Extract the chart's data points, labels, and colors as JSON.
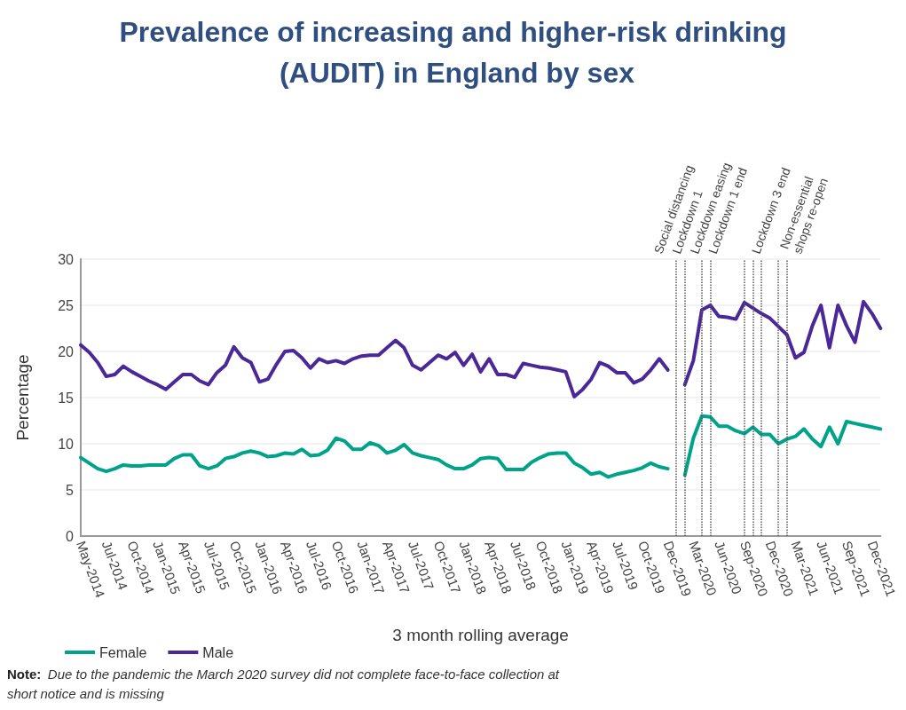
{
  "chart_data": {
    "type": "line",
    "title": "Prevalence of increasing and higher-risk drinking (AUDIT) in England by sex",
    "xlabel": "3 month rolling average",
    "ylabel": "Percentage",
    "categories": [
      "May-2014",
      null,
      null,
      "Jul-2014",
      null,
      null,
      "Oct-2014",
      null,
      null,
      "Jan-2015",
      null,
      null,
      "Apr-2015",
      null,
      null,
      "Jul-2015",
      null,
      null,
      "Oct-2015",
      null,
      null,
      "Jan-2016",
      null,
      null,
      "Apr-2016",
      null,
      null,
      "Jul-2016",
      null,
      null,
      "Oct-2016",
      null,
      null,
      "Jan-2017",
      null,
      null,
      "Apr-2017",
      null,
      null,
      "Jul-2017",
      null,
      null,
      "Oct-2017",
      null,
      null,
      "Jan-2018",
      null,
      null,
      "Apr-2018",
      null,
      null,
      "Jul-2018",
      null,
      null,
      "Oct-2018",
      null,
      null,
      "Jan-2019",
      null,
      null,
      "Apr-2019",
      null,
      null,
      "Jul-2019",
      null,
      null,
      "Oct-2019",
      null,
      null,
      "Dec-2019",
      null,
      null,
      "Mar-2020",
      null,
      null,
      "Jun-2020",
      null,
      null,
      "Sep-2020",
      null,
      null,
      "Dec-2020",
      null,
      null,
      "Mar-2021",
      null,
      null,
      "Jun-2021",
      null,
      null,
      "Sep-2021",
      null,
      null,
      "Dec-2021",
      null
    ],
    "series": [
      {
        "name": "Female",
        "color": "#00a38a",
        "values": [
          8.5,
          7.9,
          7.3,
          7.0,
          7.3,
          7.7,
          7.6,
          7.6,
          7.7,
          7.7,
          7.7,
          8.4,
          8.8,
          8.8,
          7.6,
          7.3,
          7.6,
          8.4,
          8.6,
          9.0,
          9.2,
          9.0,
          8.6,
          8.7,
          9.0,
          8.9,
          9.4,
          8.7,
          8.8,
          9.3,
          10.6,
          10.3,
          9.4,
          9.4,
          10.1,
          9.8,
          9.0,
          9.3,
          9.9,
          9.0,
          8.7,
          8.5,
          8.3,
          7.7,
          7.3,
          7.3,
          7.7,
          8.4,
          8.5,
          8.4,
          7.2,
          7.2,
          7.2,
          8.0,
          8.5,
          8.9,
          9.0,
          9.0,
          7.9,
          7.4,
          6.7,
          6.9,
          6.4,
          6.7,
          6.9,
          7.1,
          7.4,
          7.9,
          7.5,
          7.3,
          null,
          6.6,
          10.6,
          13.0,
          12.9,
          11.9,
          11.9,
          11.4,
          11.1,
          11.8,
          11.0,
          11.0,
          10.0,
          10.5,
          10.8,
          11.6,
          10.5,
          9.7,
          11.8,
          10.0,
          12.4,
          12.2,
          12.0,
          11.8,
          11.6
        ]
      },
      {
        "name": "Male",
        "color": "#4b2897",
        "values": [
          20.7,
          19.9,
          18.8,
          17.3,
          17.5,
          18.4,
          17.8,
          17.3,
          16.8,
          16.4,
          15.9,
          16.7,
          17.5,
          17.5,
          16.8,
          16.4,
          17.7,
          18.5,
          20.5,
          19.3,
          18.8,
          16.7,
          17.0,
          18.6,
          20.0,
          20.1,
          19.3,
          18.2,
          19.2,
          18.8,
          19.0,
          18.7,
          19.2,
          19.5,
          19.6,
          19.6,
          20.4,
          21.2,
          20.4,
          18.5,
          18.0,
          18.8,
          19.6,
          19.2,
          19.9,
          18.5,
          19.7,
          17.8,
          19.2,
          17.5,
          17.5,
          17.2,
          18.7,
          18.5,
          18.3,
          18.2,
          18.0,
          17.8,
          15.1,
          15.9,
          17.0,
          18.8,
          18.4,
          17.7,
          17.7,
          16.6,
          17.0,
          18.0,
          19.2,
          18.0,
          null,
          16.4,
          19.0,
          24.5,
          25.0,
          23.8,
          23.7,
          23.5,
          25.3,
          24.7,
          24.1,
          23.6,
          22.7,
          21.8,
          19.3,
          19.9,
          22.8,
          25.0,
          20.4,
          25.0,
          22.8,
          21.0,
          25.4,
          24.1,
          22.5
        ]
      }
    ],
    "ylim": [
      0,
      30
    ],
    "yticks": [
      0,
      5,
      10,
      15,
      20,
      25,
      30
    ],
    "grid": "y",
    "legend": "bottom left",
    "marker": "none",
    "line_style": "solid",
    "annotations": [
      "Social distancing",
      "Lockdown 1",
      "Lockdown easing",
      "Lockdown 1 end",
      "Lockdown 3 end",
      "Non-essential shops re-open",
      "Note: Due to the pandemic the March 2020 survey did not complete face-to-face collection at short notice and is missing"
    ]
  }
}
